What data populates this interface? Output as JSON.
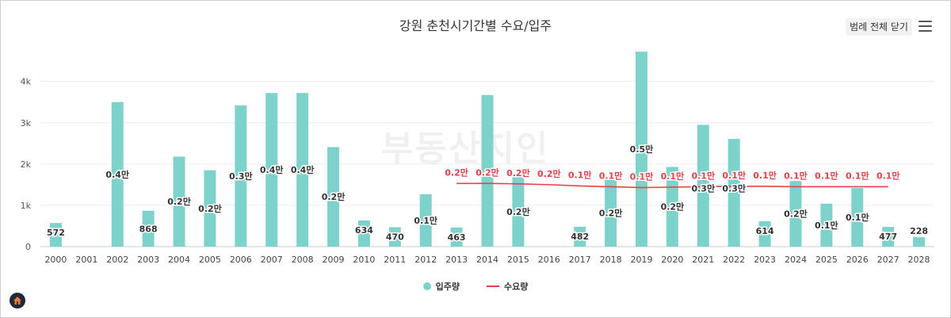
{
  "chart_data": {
    "type": "bar",
    "title": "강원 춘천시기간별 수요/입주",
    "x": [
      "2000",
      "2001",
      "2002",
      "2003",
      "2004",
      "2005",
      "2006",
      "2007",
      "2008",
      "2009",
      "2010",
      "2011",
      "2012",
      "2013",
      "2014",
      "2015",
      "2016",
      "2017",
      "2018",
      "2019",
      "2020",
      "2021",
      "2022",
      "2023",
      "2024",
      "2025",
      "2026",
      "2027",
      "2028"
    ],
    "y_ticks": [
      {
        "value": 0,
        "label": "0"
      },
      {
        "value": 1000,
        "label": "1k"
      },
      {
        "value": 2000,
        "label": "2k"
      },
      {
        "value": 3000,
        "label": "3k"
      },
      {
        "value": 4000,
        "label": "4k"
      }
    ],
    "ylim": [
      0,
      4800
    ],
    "series": [
      {
        "name": "입주량",
        "type": "bar",
        "color": "#7dd3cc",
        "values": [
          572,
          0,
          3500,
          868,
          2180,
          1850,
          3420,
          3720,
          3720,
          2410,
          634,
          470,
          1270,
          463,
          3670,
          1690,
          0,
          482,
          1640,
          4720,
          1930,
          2950,
          2610,
          614,
          1590,
          1040,
          1420,
          477,
          228
        ],
        "labels": [
          "572",
          "",
          "0.4만",
          "868",
          "0.2만",
          "0.2만",
          "0.3만",
          "0.4만",
          "0.4만",
          "0.2만",
          "634",
          "470",
          "0.1만",
          "463",
          "",
          "0.2만",
          "",
          "482",
          "0.2만",
          "0.5만",
          "0.2만",
          "0.3만",
          "0.3만",
          "614",
          "0.2만",
          "0.1만",
          "0.1만",
          "477",
          "228"
        ]
      },
      {
        "name": "수요량",
        "type": "line",
        "color": "#e8404a",
        "values": [
          null,
          null,
          null,
          null,
          null,
          null,
          null,
          null,
          null,
          null,
          null,
          null,
          null,
          1530,
          1530,
          1520,
          1500,
          1470,
          1450,
          1430,
          1440,
          1450,
          1460,
          1460,
          1450,
          1450,
          1450,
          1450,
          null
        ],
        "labels": [
          "",
          "",
          "",
          "",
          "",
          "",
          "",
          "",
          "",
          "",
          "",
          "",
          "",
          "0.2만",
          "0.2만",
          "0.2만",
          "0.2만",
          "0.1만",
          "0.1만",
          "0.1만",
          "0.1만",
          "0.1만",
          "0.1만",
          "0.1만",
          "0.1만",
          "0.1만",
          "0.1만",
          "0.1만",
          ""
        ]
      }
    ],
    "legend_position": "bottom"
  },
  "toolbar": {
    "legend_toggle_label": "범례 전체 닫기"
  },
  "legend": {
    "bar_label": "입주량",
    "line_label": "수요량"
  },
  "watermark": {
    "text": "부동산지인"
  }
}
